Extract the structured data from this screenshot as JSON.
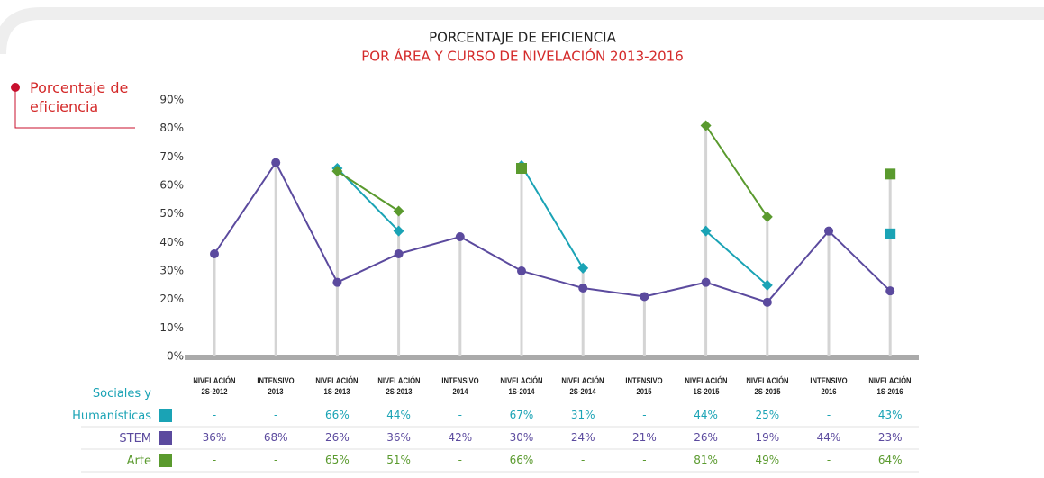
{
  "chart_data": {
    "type": "line",
    "title": "PORCENTAJE DE EFICIENCIA",
    "subtitle": "POR ÁREA Y CURSO DE NIVELACIÓN 2013-2016",
    "legend_label": "Porcentaje de eficiencia",
    "categories": [
      "NIVELACIÓN 2S-2012",
      "INTENSIVO 2013",
      "NIVELACIÓN 1S-2013",
      "NIVELACIÓN 2S-2013",
      "INTENSIVO 2014",
      "NIVELACIÓN 1S-2014",
      "NIVELACIÓN 2S-2014",
      "INTENSIVO 2015",
      "NIVELACIÓN 1S-2015",
      "NIVELACIÓN 2S-2015",
      "INTENSIVO 2016",
      "NIVELACIÓN 1S-2016"
    ],
    "series": [
      {
        "name": "Sociales y Humanísticas",
        "color": "#1aa3b5",
        "marker": "diamond",
        "values": [
          null,
          null,
          66,
          44,
          null,
          67,
          31,
          null,
          44,
          25,
          null,
          43
        ],
        "value_labels": [
          "-",
          "-",
          "66%",
          "44%",
          "-",
          "67%",
          "31%",
          "-",
          "44%",
          "25%",
          "-",
          "43%"
        ]
      },
      {
        "name": "STEM",
        "color": "#5b4a9e",
        "marker": "circle",
        "values": [
          36,
          68,
          26,
          36,
          42,
          30,
          24,
          21,
          26,
          19,
          44,
          23
        ],
        "value_labels": [
          "36%",
          "68%",
          "26%",
          "36%",
          "42%",
          "30%",
          "24%",
          "21%",
          "26%",
          "19%",
          "44%",
          "23%"
        ]
      },
      {
        "name": "Arte",
        "color": "#5a9a2e",
        "marker": "diamond",
        "values": [
          null,
          null,
          65,
          51,
          null,
          66,
          null,
          null,
          81,
          49,
          null,
          64
        ],
        "value_labels": [
          "-",
          "-",
          "65%",
          "51%",
          "-",
          "66%",
          "-",
          "-",
          "81%",
          "49%",
          "-",
          "64%"
        ]
      }
    ],
    "ylim": [
      0,
      90
    ],
    "yticks": [
      {
        "value": 0,
        "label": "0%"
      },
      {
        "value": 10,
        "label": "10%"
      },
      {
        "value": 20,
        "label": "20%"
      },
      {
        "value": 30,
        "label": "30%"
      },
      {
        "value": 40,
        "label": "40%"
      },
      {
        "value": 50,
        "label": "50%"
      },
      {
        "value": 60,
        "label": "60%"
      },
      {
        "value": 70,
        "label": "70%"
      },
      {
        "value": 80,
        "label": "80%"
      },
      {
        "value": 90,
        "label": "90%"
      }
    ]
  }
}
